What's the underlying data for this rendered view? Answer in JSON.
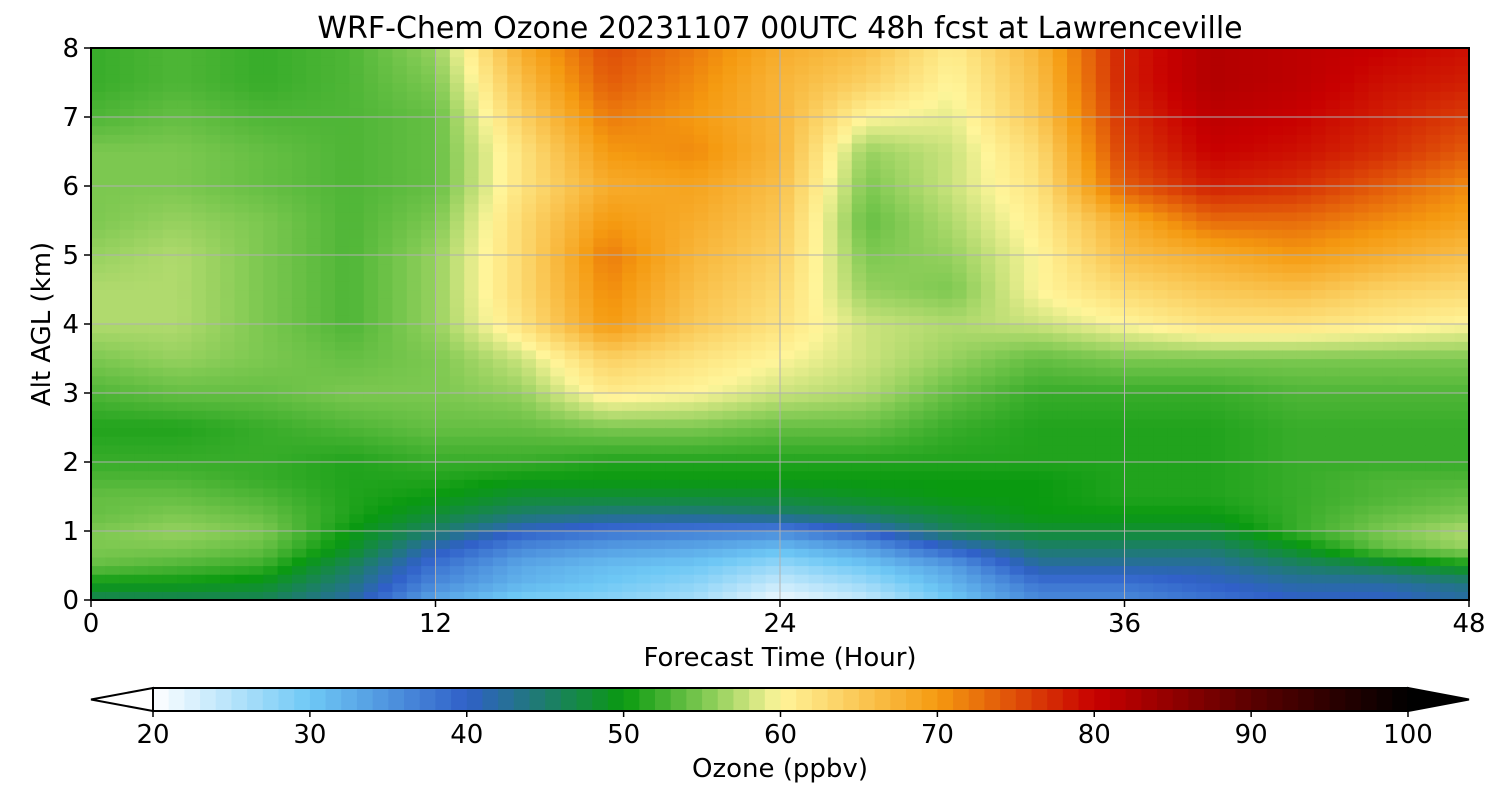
{
  "chart_data": {
    "type": "heatmap",
    "title": "WRF-Chem Ozone  20231107 00UTC 48h fcst at Lawrenceville",
    "xlabel": "Forecast Time (Hour)",
    "ylabel": "Alt AGL (km)",
    "xlim": [
      0,
      48
    ],
    "ylim": [
      0,
      8
    ],
    "xticks": [
      0,
      12,
      24,
      36,
      48
    ],
    "yticks": [
      0,
      1,
      2,
      3,
      4,
      5,
      6,
      7,
      8
    ],
    "grid": true,
    "colorbar": {
      "label": "Ozone  (ppbv)",
      "range": [
        20,
        100
      ],
      "ticks": [
        20,
        30,
        40,
        50,
        60,
        70,
        80,
        90,
        100
      ],
      "extend": "both",
      "orientation": "horizontal",
      "colors": {
        "20": "#ffffff",
        "30": "#6ec8f5",
        "40": "#3060c8",
        "50": "#0a9a10",
        "55": "#7cc850",
        "60": "#fff59a",
        "70": "#f59a10",
        "80": "#c80000",
        "90": "#5a0000",
        "100": "#000000"
      }
    },
    "x_hours": [
      0,
      3,
      6,
      9,
      12,
      15,
      18,
      21,
      24,
      27,
      30,
      33,
      36,
      39,
      42,
      45,
      48
    ],
    "altitudes_km": [
      0,
      0.25,
      0.5,
      0.75,
      1,
      1.25,
      1.5,
      1.75,
      2,
      2.5,
      3,
      3.5,
      4,
      4.5,
      5,
      5.5,
      6,
      6.5,
      7,
      7.5,
      8
    ],
    "ozone_ppbv": [
      [
        46,
        46,
        46,
        42,
        33,
        29,
        28,
        26,
        21,
        24,
        30,
        36,
        36,
        38,
        40,
        40,
        42
      ],
      [
        50,
        50,
        49,
        44,
        36,
        32,
        30,
        28,
        24,
        27,
        32,
        38,
        38,
        40,
        42,
        42,
        44
      ],
      [
        54,
        53,
        52,
        46,
        38,
        33,
        31,
        30,
        27,
        30,
        34,
        42,
        42,
        42,
        45,
        47,
        50
      ],
      [
        55,
        55,
        54,
        49,
        41,
        36,
        34,
        33,
        31,
        34,
        40,
        45,
        45,
        45,
        49,
        54,
        56
      ],
      [
        55,
        56,
        55,
        50,
        45,
        40,
        38,
        37,
        36,
        40,
        46,
        48,
        48,
        48,
        52,
        55,
        57
      ],
      [
        54,
        55,
        54,
        51,
        48,
        45,
        44,
        44,
        45,
        46,
        48,
        50,
        50,
        50,
        52,
        54,
        55
      ],
      [
        54,
        54,
        53,
        51,
        50,
        48,
        48,
        48,
        48,
        49,
        50,
        50,
        51,
        51,
        52,
        53,
        54
      ],
      [
        53,
        53,
        52,
        51,
        51,
        50,
        50,
        50,
        50,
        50,
        50,
        50,
        51,
        51,
        52,
        53,
        53
      ],
      [
        52,
        52,
        52,
        51,
        52,
        52,
        51,
        51,
        51,
        51,
        51,
        51,
        51,
        51,
        52,
        52,
        52
      ],
      [
        51,
        51,
        52,
        53,
        54,
        54,
        55,
        55,
        54,
        54,
        52,
        51,
        51,
        51,
        52,
        52,
        52
      ],
      [
        53,
        54,
        54,
        55,
        55,
        56,
        61,
        60,
        58,
        57,
        54,
        52,
        52,
        52,
        53,
        53,
        53
      ],
      [
        55,
        56,
        55,
        54,
        55,
        58,
        64,
        62,
        60,
        58,
        56,
        54,
        55,
        55,
        55,
        55,
        55
      ],
      [
        57,
        57,
        55,
        53,
        56,
        62,
        70,
        65,
        62,
        58,
        57,
        58,
        60,
        62,
        62,
        61,
        60
      ],
      [
        57,
        57,
        55,
        53,
        56,
        63,
        71,
        66,
        63,
        56,
        55,
        60,
        63,
        65,
        66,
        64,
        63
      ],
      [
        56,
        57,
        55,
        53,
        56,
        63,
        72,
        67,
        64,
        55,
        56,
        60,
        66,
        68,
        70,
        68,
        66
      ],
      [
        55,
        56,
        55,
        53,
        55,
        63,
        70,
        68,
        65,
        54,
        57,
        61,
        68,
        73,
        73,
        71,
        69
      ],
      [
        55,
        55,
        54,
        53,
        54,
        62,
        68,
        69,
        66,
        55,
        58,
        62,
        74,
        78,
        77,
        74,
        71
      ],
      [
        55,
        55,
        54,
        53,
        54,
        62,
        70,
        71,
        67,
        56,
        58,
        63,
        76,
        80,
        79,
        77,
        74
      ],
      [
        53,
        54,
        53,
        53,
        54,
        64,
        72,
        70,
        67,
        60,
        59,
        65,
        77,
        81,
        80,
        78,
        76
      ],
      [
        52,
        53,
        52,
        53,
        55,
        66,
        74,
        71,
        67,
        64,
        60,
        66,
        78,
        82,
        81,
        79,
        78
      ],
      [
        52,
        53,
        52,
        53,
        56,
        68,
        75,
        72,
        68,
        66,
        61,
        67,
        78,
        82,
        81,
        80,
        79
      ]
    ]
  }
}
